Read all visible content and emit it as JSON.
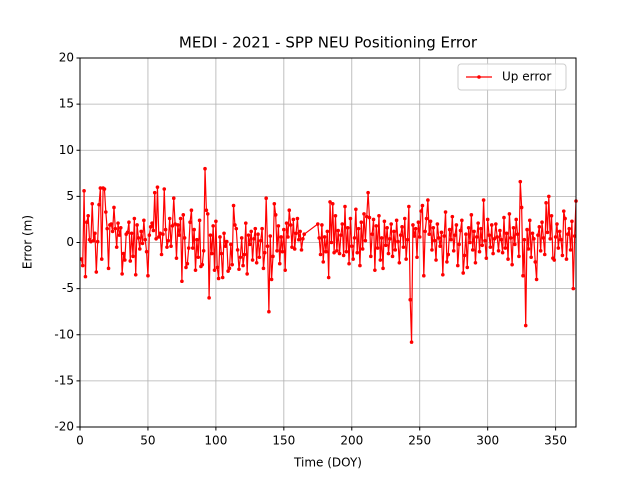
{
  "chart_data": {
    "type": "line",
    "title": "MEDI - 2021 - SPP NEU Positioning Error",
    "x_label": "Time (DOY)",
    "y_label": "Error (m)",
    "xlim": [
      0,
      365
    ],
    "xticks": [
      0,
      50,
      100,
      150,
      200,
      250,
      300,
      350
    ],
    "ylim": [
      -20,
      20
    ],
    "yticks": [
      -20,
      -15,
      -10,
      -5,
      0,
      5,
      10,
      15,
      20
    ],
    "grid": true,
    "legend": "upper right",
    "x": [
      1,
      2,
      3,
      4,
      5,
      6,
      7,
      8,
      9,
      10,
      11,
      12,
      13,
      14,
      15,
      16,
      17,
      18,
      19,
      20,
      21,
      22,
      23,
      24,
      25,
      26,
      27,
      28,
      29,
      30,
      31,
      32,
      33,
      34,
      35,
      36,
      37,
      38,
      39,
      40,
      41,
      42,
      43,
      44,
      45,
      46,
      47,
      48,
      49,
      50,
      51,
      52,
      53,
      54,
      55,
      56,
      57,
      58,
      59,
      60,
      61,
      62,
      63,
      64,
      65,
      66,
      67,
      68,
      69,
      70,
      71,
      72,
      73,
      74,
      75,
      76,
      77,
      78,
      79,
      80,
      81,
      82,
      83,
      84,
      85,
      86,
      87,
      88,
      89,
      90,
      91,
      92,
      93,
      94,
      95,
      96,
      97,
      98,
      99,
      100,
      101,
      102,
      103,
      104,
      105,
      106,
      107,
      108,
      109,
      110,
      111,
      112,
      113,
      114,
      115,
      116,
      117,
      118,
      119,
      120,
      121,
      122,
      123,
      124,
      125,
      126,
      127,
      128,
      129,
      130,
      131,
      132,
      133,
      134,
      135,
      136,
      137,
      138,
      139,
      140,
      141,
      142,
      143,
      144,
      145,
      146,
      147,
      148,
      149,
      150,
      151,
      152,
      153,
      154,
      155,
      156,
      157,
      158,
      159,
      160,
      161,
      162,
      163,
      164,
      165,
      175,
      176,
      177,
      178,
      179,
      180,
      181,
      182,
      183,
      184,
      185,
      186,
      187,
      188,
      189,
      190,
      191,
      192,
      193,
      194,
      195,
      196,
      197,
      198,
      199,
      200,
      201,
      202,
      203,
      204,
      205,
      206,
      207,
      208,
      209,
      210,
      211,
      212,
      213,
      214,
      215,
      216,
      217,
      218,
      219,
      220,
      221,
      222,
      223,
      224,
      225,
      226,
      227,
      228,
      229,
      230,
      231,
      232,
      233,
      234,
      235,
      236,
      237,
      238,
      239,
      240,
      241,
      242,
      243,
      244,
      245,
      246,
      247,
      248,
      249,
      250,
      251,
      252,
      253,
      254,
      255,
      256,
      257,
      258,
      259,
      260,
      261,
      262,
      263,
      264,
      265,
      266,
      267,
      268,
      269,
      270,
      271,
      272,
      273,
      274,
      275,
      276,
      277,
      278,
      279,
      280,
      281,
      282,
      283,
      284,
      285,
      286,
      287,
      288,
      289,
      290,
      291,
      292,
      293,
      294,
      295,
      296,
      297,
      298,
      299,
      300,
      301,
      302,
      303,
      304,
      305,
      306,
      307,
      308,
      309,
      310,
      311,
      312,
      313,
      314,
      315,
      316,
      317,
      318,
      319,
      320,
      321,
      322,
      323,
      324,
      325,
      326,
      327,
      328,
      329,
      330,
      331,
      332,
      333,
      334,
      335,
      336,
      337,
      338,
      339,
      340,
      341,
      342,
      343,
      344,
      345,
      346,
      347,
      348,
      349,
      350,
      351,
      352,
      353,
      354,
      355,
      356,
      357,
      358,
      359,
      360,
      361,
      362,
      363,
      364,
      365
    ],
    "series": [
      {
        "name": "Up error",
        "color": "#ff0000",
        "values": [
          -1.8,
          -2.5,
          5.6,
          -3.7,
          2.2,
          2.9,
          0.3,
          0.1,
          4.2,
          0.2,
          1.0,
          -3.2,
          0.1,
          4.1,
          5.9,
          -1.8,
          5.9,
          5.8,
          3.3,
          1.5,
          -2.8,
          1.9,
          2.0,
          1.2,
          3.8,
          1.5,
          -0.5,
          2.1,
          0.8,
          1.6,
          -3.4,
          -1.2,
          -1.9,
          0.9,
          1.1,
          2.2,
          -2.0,
          1.0,
          -1.5,
          2.6,
          -3.5,
          1.9,
          0.5,
          -0.7,
          1.2,
          -0.1,
          2.4,
          0.3,
          -1.0,
          -3.6,
          0.8,
          1.7,
          2.1,
          1.3,
          5.4,
          0.4,
          6.0,
          0.6,
          1.0,
          -1.3,
          0.9,
          5.8,
          1.4,
          -0.5,
          0.2,
          2.6,
          -0.4,
          1.8,
          4.8,
          2.0,
          -1.7,
          1.9,
          0.8,
          2.6,
          -4.2,
          3.0,
          0.5,
          -2.7,
          -2.3,
          -0.6,
          2.2,
          3.5,
          -0.6,
          1.4,
          -3.0,
          0.3,
          -1.6,
          2.4,
          -2.6,
          -2.4,
          -0.9,
          8.0,
          3.5,
          3.1,
          -6.0,
          0.8,
          -1.2,
          1.8,
          -3.0,
          2.3,
          -2.7,
          -3.9,
          0.6,
          -1.2,
          -3.8,
          1.0,
          -0.4,
          0.1,
          -3.1,
          -2.8,
          -0.2,
          -2.4,
          4.0,
          1.9,
          1.5,
          -0.8,
          -2.9,
          -1.6,
          0.5,
          -2.5,
          -1.3,
          2.1,
          -3.4,
          0.8,
          -0.2,
          1.2,
          -1.9,
          0.4,
          1.5,
          -2.2,
          0.9,
          -1.6,
          0.2,
          1.5,
          -2.8,
          -1.1,
          4.8,
          -0.4,
          -7.5,
          0.7,
          -4.0,
          -1.5,
          4.2,
          3.0,
          -0.9,
          1.8,
          -2.3,
          0.6,
          -1.0,
          1.4,
          -3.0,
          2.1,
          0.6,
          3.5,
          1.9,
          -0.5,
          2.5,
          -0.7,
          1.0,
          2.6,
          0.3,
          1.2,
          -0.8,
          0.4,
          0.9,
          2.0,
          0.5,
          -1.3,
          1.9,
          -2.1,
          0.6,
          -1.0,
          1.2,
          -3.8,
          4.4,
          0.0,
          4.2,
          -1.1,
          2.9,
          -0.9,
          1.3,
          -1.2,
          0.8,
          2.0,
          -1.4,
          3.9,
          -1.0,
          1.6,
          -2.3,
          2.6,
          -0.4,
          -1.8,
          0.5,
          3.6,
          -1.1,
          1.5,
          -2.5,
          2.2,
          -0.7,
          3.1,
          0.2,
          2.8,
          5.4,
          2.7,
          -1.5,
          0.9,
          2.5,
          -3.0,
          1.8,
          -0.6,
          2.9,
          -1.9,
          0.5,
          -2.8,
          2.3,
          -0.3,
          1.6,
          -1.2,
          0.4,
          2.0,
          -1.5,
          1.2,
          -0.8,
          2.4,
          0.1,
          -2.2,
          0.8,
          1.7,
          -0.5,
          2.6,
          -1.8,
          0.3,
          3.9,
          -6.2,
          -10.8,
          1.9,
          0.7,
          1.5,
          -1.6,
          2.2,
          0.6,
          3.4,
          4.0,
          -3.6,
          1.2,
          2.6,
          4.6,
          0.9,
          2.3,
          -0.8,
          1.6,
          0.2,
          -1.9,
          2.0,
          0.5,
          -0.4,
          1.1,
          -3.5,
          0.7,
          3.3,
          -2.1,
          -1.3,
          1.4,
          0.3,
          2.8,
          -0.9,
          0.8,
          1.9,
          -2.5,
          -0.2,
          1.3,
          2.4,
          -3.3,
          -1.4,
          0.9,
          -2.7,
          1.6,
          0.0,
          3.0,
          -0.8,
          1.2,
          -2.2,
          0.6,
          2.1,
          -1.0,
          1.5,
          -0.3,
          4.6,
          0.2,
          -1.7,
          2.5,
          0.8,
          -0.5,
          1.9,
          -1.2,
          0.4,
          2.0,
          0.6,
          -0.9,
          1.3,
          0.3,
          -1.1,
          2.7,
          -0.6,
          1.0,
          -1.8,
          3.1,
          0.5,
          -2.4,
          1.6,
          -0.2,
          2.5,
          0.9,
          -1.5,
          6.6,
          3.8,
          -3.6,
          0.3,
          -9.0,
          1.4,
          -0.7,
          2.4,
          -1.6,
          1.0,
          0.4,
          -2.1,
          -4.0,
          0.8,
          1.7,
          -0.9,
          2.2,
          0.5,
          -1.3,
          4.3,
          1.1,
          5.0,
          0.4,
          2.9,
          -1.7,
          -1.9,
          0.6,
          2.0,
          -0.6,
          1.2,
          0.3,
          -1.4,
          3.4,
          2.6,
          -1.8,
          0.9,
          1.5,
          -0.8,
          2.3,
          -5.0,
          0.7,
          4.5
        ]
      }
    ]
  }
}
